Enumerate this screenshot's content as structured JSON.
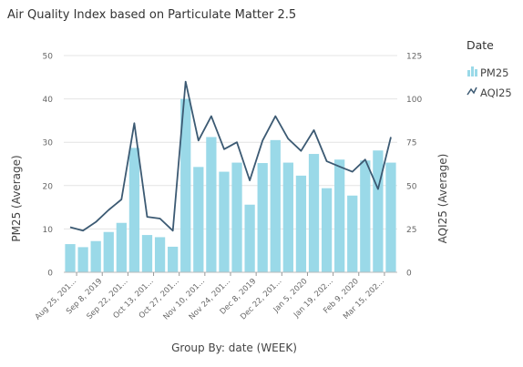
{
  "chart_data": {
    "type": "bar",
    "title": "Air Quality Index based on Particulate Matter 2.5",
    "xlabel": "Group By: date (WEEK)",
    "ylabel": "PM25 (Average)",
    "y2label": "AQI25 (Average)",
    "ylim": [
      0,
      50
    ],
    "y2lim": [
      0,
      125
    ],
    "yticks": [
      "0",
      "10",
      "20",
      "30",
      "40",
      "50"
    ],
    "y2ticks": [
      "0",
      "25",
      "50",
      "75",
      "100",
      "125"
    ],
    "legend_title": "Date",
    "legend_position": "right",
    "tick_labels": [
      "Aug 25, 201...",
      "Sep 8, 2019",
      "Sep 22, 201...",
      "Oct 13, 201...",
      "Oct 27, 201...",
      "Nov 10, 201...",
      "Nov 24, 201...",
      "Dec 8, 2019",
      "Dec 22, 201...",
      "Jan 5, 2020",
      "Jan 19, 202...",
      "Feb 9, 2020",
      "Mar 15, 202..."
    ],
    "series": [
      {
        "name": "PM25",
        "type": "bar",
        "axis": "left",
        "color": "#9ad9e8",
        "values": [
          6.5,
          5.8,
          7.2,
          9.3,
          11.4,
          28.7,
          8.6,
          8.1,
          5.9,
          40.0,
          24.3,
          31.2,
          23.2,
          25.3,
          15.6,
          25.2,
          30.5,
          25.3,
          22.3,
          27.3,
          19.4,
          26.0,
          17.7,
          25.8,
          28.1,
          25.3
        ]
      },
      {
        "name": "AQI25",
        "type": "line",
        "axis": "right",
        "color": "#3c5a73",
        "values": [
          26,
          24,
          29,
          36,
          42,
          86,
          32,
          31,
          24,
          110,
          76,
          90,
          71,
          75,
          53,
          76,
          90,
          77,
          70,
          82,
          64,
          61,
          58,
          65,
          48,
          78
        ]
      }
    ]
  }
}
